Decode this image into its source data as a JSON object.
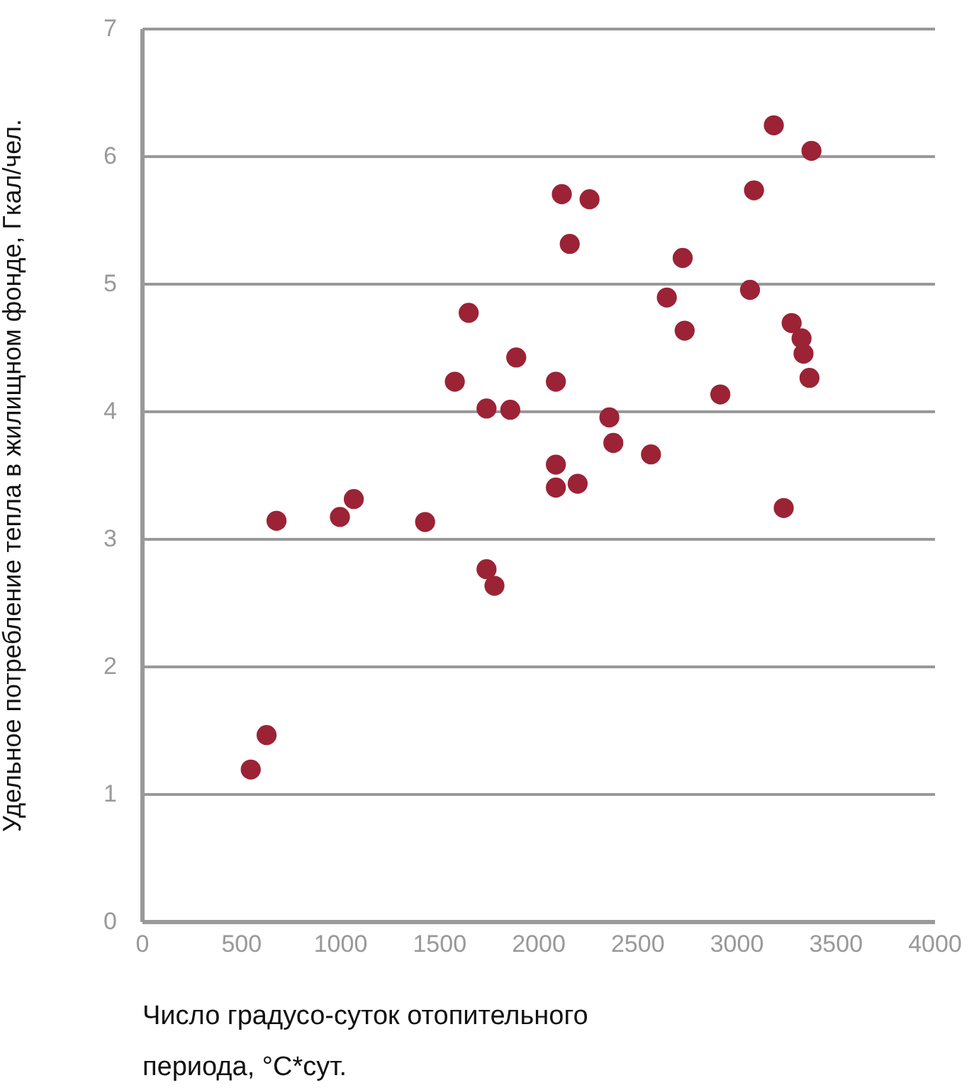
{
  "chart_data": {
    "type": "scatter",
    "xlabel": "Число градусо-суток отопительного периода, °C*сут.",
    "ylabel": "Удельное потребление тепла в жилищном фонде, Гкал/чел.",
    "x": [
      630,
      550,
      680,
      1000,
      1070,
      1430,
      1650,
      1580,
      1740,
      1860,
      1890,
      2090,
      2360,
      2380,
      2090,
      2090,
      2200,
      1740,
      1780,
      3190,
      3380,
      2120,
      2260,
      3090,
      2160,
      2730,
      3070,
      2650,
      2740,
      3280,
      3330,
      3340,
      3370,
      2920,
      2570,
      3240
    ],
    "series": [
      {
        "color": "#9b2335",
        "values": [
          1.46,
          1.19,
          3.14,
          3.17,
          3.31,
          3.13,
          4.77,
          4.23,
          4.02,
          4.01,
          4.42,
          4.23,
          3.95,
          3.75,
          3.58,
          3.4,
          3.43,
          2.76,
          2.63,
          6.24,
          6.04,
          5.7,
          5.66,
          5.73,
          5.31,
          5.2,
          4.95,
          4.89,
          4.63,
          4.69,
          4.57,
          4.45,
          4.26,
          4.13,
          3.66,
          3.24
        ]
      }
    ],
    "xlim": [
      0,
      4000
    ],
    "xticks": [
      0,
      500,
      1000,
      1500,
      2000,
      2500,
      3000,
      3500,
      4000
    ],
    "ylim": [
      0,
      7
    ],
    "yticks": [
      0,
      1,
      2,
      3,
      4,
      5,
      6,
      7
    ],
    "grid": "y",
    "marker": "circle"
  }
}
